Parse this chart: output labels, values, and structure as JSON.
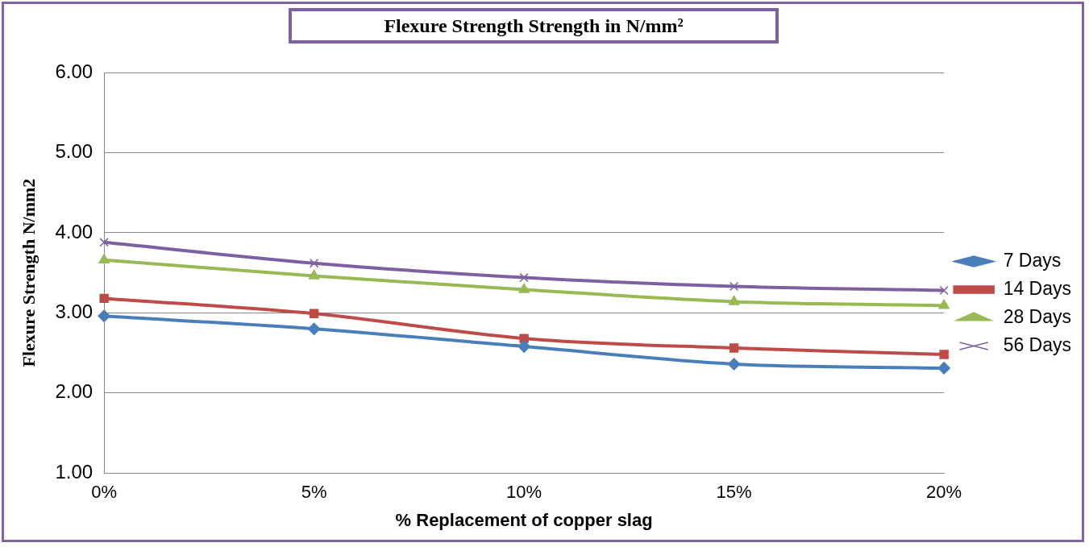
{
  "chart_data": {
    "type": "line",
    "title": "Flexure Strength Strength in N/mm²",
    "xlabel": "% Replacement of copper slag",
    "ylabel": "Flexure Strength N/mm2",
    "categories": [
      "0%",
      "5%",
      "10%",
      "15%",
      "20%"
    ],
    "series": [
      {
        "name": "7 Days",
        "color": "#4a7ebb",
        "marker": "diamond",
        "values": [
          2.96,
          2.8,
          2.58,
          2.36,
          2.31
        ]
      },
      {
        "name": "14 Days",
        "color": "#be4b48",
        "marker": "square",
        "values": [
          3.18,
          2.99,
          2.68,
          2.56,
          2.48
        ]
      },
      {
        "name": "28 Days",
        "color": "#98b954",
        "marker": "triangle",
        "values": [
          3.66,
          3.46,
          3.29,
          3.14,
          3.09
        ]
      },
      {
        "name": "56 Days",
        "color": "#7d60a0",
        "marker": "cross",
        "values": [
          3.88,
          3.62,
          3.44,
          3.33,
          3.28
        ]
      }
    ],
    "ylim": [
      1,
      6
    ],
    "yticks": [
      {
        "value": 1,
        "label": "1.00"
      },
      {
        "value": 2,
        "label": "2.00"
      },
      {
        "value": 3,
        "label": "3.00"
      },
      {
        "value": 4,
        "label": "4.00"
      },
      {
        "value": 5,
        "label": "5.00"
      },
      {
        "value": 6,
        "label": "6.00"
      }
    ],
    "grid": "y",
    "legend": "right",
    "line_style": "solid"
  }
}
